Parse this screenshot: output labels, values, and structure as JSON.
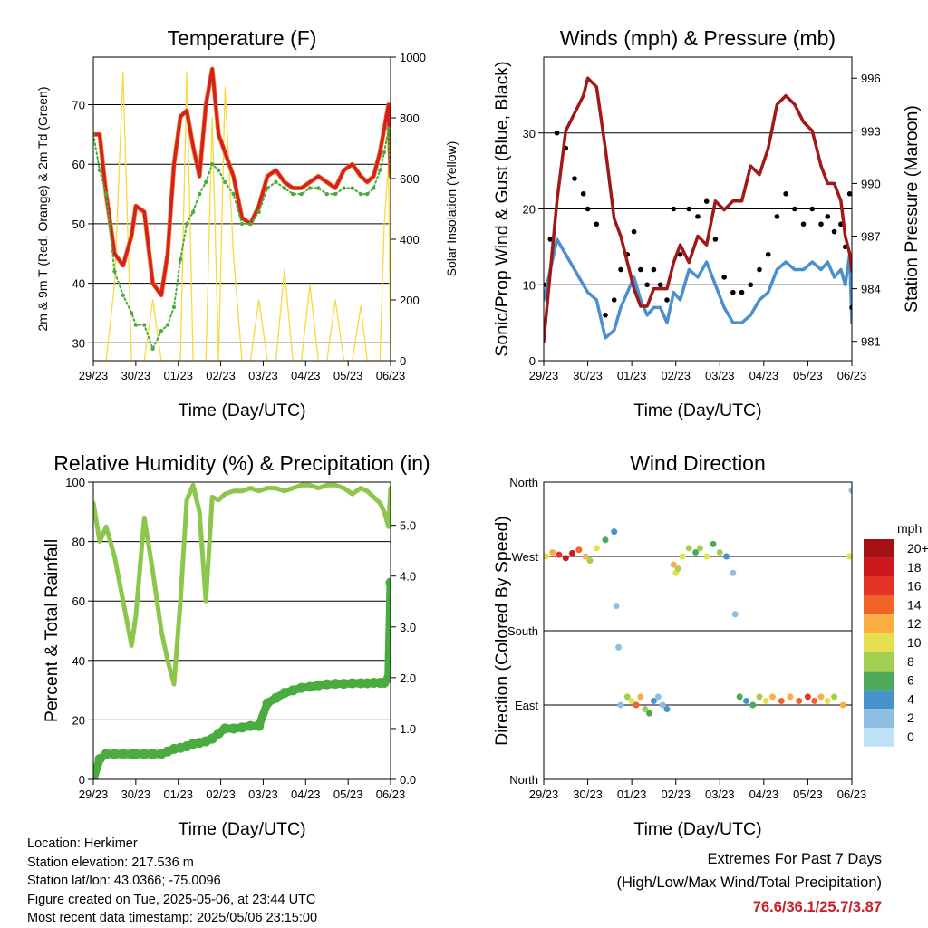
{
  "x_ticks": [
    "29/23",
    "30/23",
    "01/23",
    "02/23",
    "03/23",
    "04/23",
    "05/23",
    "06/23"
  ],
  "legend": {
    "title": "mph",
    "labels": [
      "20+",
      "18",
      "16",
      "14",
      "12",
      "10",
      "8",
      "6",
      "4",
      "2",
      "0"
    ],
    "colors": [
      "#a50f15",
      "#cb181d",
      "#e53225",
      "#f16428",
      "#fdae43",
      "#e6df4e",
      "#a4d052",
      "#4ea85a",
      "#4493c9",
      "#8ebfe3",
      "#bfe1f5"
    ]
  },
  "colors": {
    "temperature": "#d42020",
    "temp_9m": "#f08020",
    "dewpoint": "#4aab3e",
    "solar": "#f8da3c",
    "wind": "#4a90d0",
    "gust": "#000000",
    "pressure": "#a01818",
    "humidity": "#8cc64a",
    "precip": "#4aab3e"
  },
  "info": {
    "location": "Location: Herkimer",
    "elevation": "Station elevation: 217.536 m",
    "latlon": "Station lat/lon: 43.0366; -75.0096",
    "created": "Figure created on Tue, 2025-05-06, at 23:44 UTC",
    "recent": "Most recent data timestamp: 2025/05/06 23:15:00"
  },
  "extremes": {
    "line1": "Extremes For Past 7 Days",
    "line2": "(High/Low/Max Wind/Total Precipitation)",
    "values": "76.6/36.1/25.7/3.87"
  },
  "chart_data": [
    {
      "id": "temperature",
      "type": "line",
      "title": "Temperature (F)",
      "xlabel": "Time (Day/UTC)",
      "ylabel": "2m & 9m T (Red, Orange) & 2m Td (Green)",
      "y2label": "Solar Insolation (Yellow)",
      "x": [
        0,
        0.15,
        0.3,
        0.5,
        0.7,
        0.9,
        1.0,
        1.2,
        1.4,
        1.6,
        1.75,
        1.9,
        2.05,
        2.2,
        2.35,
        2.5,
        2.65,
        2.8,
        2.95,
        3.1,
        3.3,
        3.5,
        3.7,
        3.9,
        4.1,
        4.3,
        4.5,
        4.7,
        4.9,
        5.1,
        5.3,
        5.5,
        5.7,
        5.9,
        6.1,
        6.3,
        6.45,
        6.6,
        6.75,
        6.85,
        6.95,
        7.0
      ],
      "ylim": [
        27,
        78
      ],
      "y2lim": [
        0,
        1000
      ],
      "y_ticks": [
        30,
        40,
        50,
        60,
        70
      ],
      "y2_ticks": [
        0,
        200,
        400,
        600,
        800,
        1000
      ],
      "series": [
        {
          "name": "2m T",
          "axis": "left",
          "values": [
            65,
            65,
            55,
            45,
            43,
            48,
            53,
            52,
            40,
            38,
            45,
            60,
            68,
            69,
            63,
            58,
            70,
            76,
            65,
            62,
            58,
            51,
            50,
            53,
            58,
            59,
            57,
            56,
            56,
            57,
            58,
            57,
            56,
            59,
            60,
            58,
            57,
            58,
            62,
            66,
            70,
            58
          ]
        },
        {
          "name": "2m Td",
          "axis": "left",
          "values": [
            65,
            59,
            55,
            42,
            38,
            35,
            33,
            33,
            29,
            32,
            33,
            36,
            44,
            50,
            52,
            55,
            57,
            60,
            59,
            57,
            55,
            50,
            50,
            52,
            56,
            57,
            56,
            55,
            55,
            56,
            56,
            55,
            55,
            56,
            56,
            55,
            55,
            56,
            59,
            62,
            66,
            58
          ]
        },
        {
          "name": "Solar",
          "axis": "right",
          "values": [
            0,
            0,
            0,
            250,
            950,
            0,
            0,
            0,
            200,
            0,
            0,
            0,
            0,
            950,
            0,
            0,
            0,
            800,
            0,
            900,
            350,
            0,
            0,
            200,
            0,
            0,
            300,
            0,
            0,
            250,
            0,
            0,
            200,
            0,
            0,
            180,
            0,
            0,
            0,
            450,
            650,
            0
          ]
        }
      ]
    },
    {
      "id": "wind",
      "type": "line",
      "title": "Winds (mph) & Pressure (mb)",
      "xlabel": "Time (Day/UTC)",
      "ylabel": "Sonic/Prop Wind & Gust (Blue, Black)",
      "y2label": "Station Pressure (Maroon)",
      "x": [
        0,
        0.15,
        0.3,
        0.5,
        0.7,
        0.9,
        1.0,
        1.2,
        1.4,
        1.6,
        1.75,
        1.9,
        2.05,
        2.2,
        2.35,
        2.5,
        2.65,
        2.8,
        2.95,
        3.1,
        3.3,
        3.5,
        3.7,
        3.9,
        4.1,
        4.3,
        4.5,
        4.7,
        4.9,
        5.1,
        5.3,
        5.5,
        5.7,
        5.9,
        6.1,
        6.3,
        6.45,
        6.6,
        6.75,
        6.85,
        6.95,
        7.0
      ],
      "ylim": [
        0,
        40
      ],
      "y2lim": [
        979.9,
        997.2
      ],
      "y_ticks": [
        0,
        10,
        20,
        30
      ],
      "y2_ticks": [
        981,
        984,
        987,
        990,
        993,
        996
      ],
      "series": [
        {
          "name": "Wind",
          "axis": "left",
          "values": [
            8,
            12,
            16,
            14,
            12,
            10,
            9,
            8,
            3,
            4,
            7,
            9,
            11,
            8,
            6,
            7,
            7,
            5,
            9,
            8,
            12,
            11,
            13,
            10,
            7,
            5,
            5,
            6,
            8,
            9,
            12,
            13,
            12,
            12,
            13,
            12,
            13,
            11,
            12,
            10,
            14,
            5
          ]
        },
        {
          "name": "Gust",
          "axis": "left",
          "values": [
            10,
            16,
            30,
            28,
            24,
            22,
            20,
            18,
            6,
            8,
            12,
            14,
            17,
            12,
            10,
            12,
            10,
            8,
            20,
            14,
            20,
            19,
            21,
            16,
            11,
            9,
            9,
            10,
            12,
            14,
            19,
            22,
            20,
            18,
            20,
            18,
            19,
            17,
            18,
            15,
            22,
            7
          ]
        },
        {
          "name": "Pressure",
          "axis": "right",
          "values": [
            981,
            985,
            989,
            993,
            994,
            995,
            996,
            995.5,
            992,
            988,
            987,
            985.5,
            984,
            983,
            983,
            984,
            984,
            984,
            985.5,
            986.5,
            985.5,
            987,
            986.5,
            989,
            988.5,
            989,
            989,
            991,
            990.5,
            992,
            994.5,
            995,
            994.5,
            993.5,
            993,
            991,
            990,
            990,
            989,
            987,
            986,
            985
          ]
        }
      ]
    },
    {
      "id": "humidity",
      "type": "line",
      "title": "Relative Humidity (%) & Precipitation (in)",
      "xlabel": "Time (Day/UTC)",
      "ylabel": "Percent & Total Rainfall",
      "x": [
        0,
        0.15,
        0.3,
        0.5,
        0.7,
        0.9,
        1.0,
        1.2,
        1.4,
        1.6,
        1.75,
        1.9,
        2.05,
        2.2,
        2.35,
        2.5,
        2.65,
        2.8,
        2.95,
        3.1,
        3.3,
        3.5,
        3.7,
        3.9,
        4.1,
        4.3,
        4.5,
        4.7,
        4.9,
        5.1,
        5.3,
        5.5,
        5.7,
        5.9,
        6.1,
        6.3,
        6.45,
        6.6,
        6.75,
        6.85,
        6.95,
        7.0
      ],
      "ylim": [
        0,
        100
      ],
      "y2lim": [
        0,
        5.85
      ],
      "y_ticks": [
        0,
        20,
        40,
        60,
        80,
        100
      ],
      "y2_ticks": [
        0,
        1,
        2,
        3,
        4,
        5
      ],
      "y2_tick_labels": [
        "0.0",
        "1.0",
        "2.0",
        "3.0",
        "4.0",
        "5.0"
      ],
      "series": [
        {
          "name": "RH",
          "axis": "left",
          "values": [
            93,
            80,
            85,
            75,
            60,
            45,
            55,
            88,
            70,
            50,
            40,
            32,
            60,
            94,
            99,
            90,
            60,
            95,
            94,
            96,
            97,
            97,
            98,
            97,
            98,
            98,
            97,
            98,
            99,
            99,
            98,
            99,
            99,
            98,
            96,
            98,
            97,
            95,
            93,
            90,
            85,
            98
          ]
        },
        {
          "name": "Precip",
          "axis": "right",
          "values": [
            0,
            0.4,
            0.5,
            0.5,
            0.5,
            0.5,
            0.5,
            0.5,
            0.5,
            0.5,
            0.55,
            0.6,
            0.62,
            0.65,
            0.7,
            0.72,
            0.75,
            0.8,
            0.9,
            1.0,
            1.0,
            1.02,
            1.05,
            1.05,
            1.5,
            1.6,
            1.7,
            1.75,
            1.8,
            1.82,
            1.85,
            1.87,
            1.88,
            1.88,
            1.89,
            1.89,
            1.89,
            1.9,
            1.9,
            1.9,
            2.0,
            3.87
          ]
        }
      ]
    },
    {
      "id": "direction",
      "type": "scatter",
      "title": "Wind Direction",
      "xlabel": "Time (Day/UTC)",
      "ylabel": "Direction (Colored By Speed)",
      "ylim": [
        0,
        360
      ],
      "y_tick_labels": [
        "North",
        "East",
        "South",
        "West",
        "North"
      ],
      "points": [
        [
          0.05,
          270,
          10
        ],
        [
          0.2,
          275,
          12
        ],
        [
          0.35,
          272,
          16
        ],
        [
          0.5,
          268,
          18
        ],
        [
          0.65,
          274,
          17
        ],
        [
          0.8,
          278,
          14
        ],
        [
          0.95,
          270,
          12
        ],
        [
          1.05,
          265,
          8
        ],
        [
          1.2,
          280,
          10
        ],
        [
          1.4,
          290,
          6
        ],
        [
          1.6,
          300,
          4
        ],
        [
          1.65,
          210,
          2
        ],
        [
          1.7,
          160,
          2
        ],
        [
          1.75,
          90,
          2
        ],
        [
          1.9,
          100,
          8
        ],
        [
          2.0,
          95,
          10
        ],
        [
          2.1,
          90,
          14
        ],
        [
          2.2,
          100,
          12
        ],
        [
          2.3,
          85,
          8
        ],
        [
          2.4,
          80,
          6
        ],
        [
          2.5,
          95,
          4
        ],
        [
          2.6,
          100,
          2
        ],
        [
          2.7,
          90,
          2
        ],
        [
          2.8,
          85,
          4
        ],
        [
          2.95,
          260,
          12
        ],
        [
          3.0,
          250,
          10
        ],
        [
          3.05,
          255,
          8
        ],
        [
          3.15,
          270,
          10
        ],
        [
          3.3,
          280,
          8
        ],
        [
          3.45,
          275,
          6
        ],
        [
          3.55,
          280,
          8
        ],
        [
          3.7,
          270,
          10
        ],
        [
          3.85,
          285,
          6
        ],
        [
          4.0,
          275,
          8
        ],
        [
          4.15,
          270,
          4
        ],
        [
          4.3,
          250,
          2
        ],
        [
          4.35,
          200,
          2
        ],
        [
          4.45,
          100,
          6
        ],
        [
          4.6,
          95,
          4
        ],
        [
          4.75,
          90,
          6
        ],
        [
          4.9,
          100,
          8
        ],
        [
          5.05,
          95,
          10
        ],
        [
          5.2,
          100,
          12
        ],
        [
          5.4,
          95,
          14
        ],
        [
          5.6,
          100,
          12
        ],
        [
          5.8,
          95,
          14
        ],
        [
          6.0,
          100,
          16
        ],
        [
          6.15,
          95,
          14
        ],
        [
          6.3,
          100,
          12
        ],
        [
          6.45,
          95,
          10
        ],
        [
          6.6,
          100,
          8
        ],
        [
          6.8,
          90,
          12
        ],
        [
          6.95,
          270,
          10
        ],
        [
          7.0,
          350,
          2
        ]
      ]
    }
  ]
}
